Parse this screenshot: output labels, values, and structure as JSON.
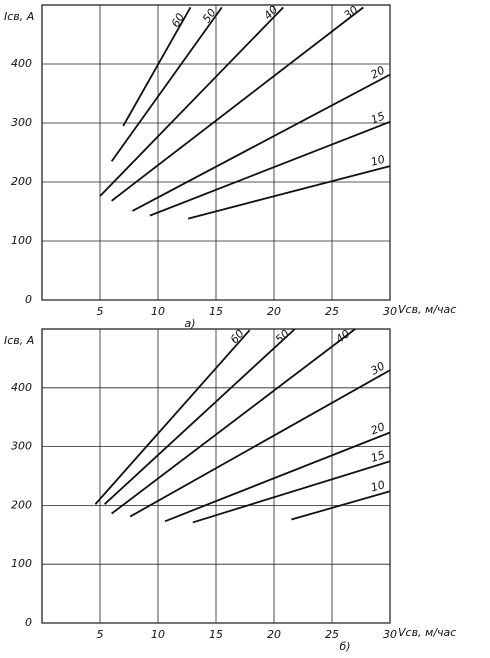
{
  "chart_data": [
    {
      "type": "line",
      "ylabel": "Iсв, А",
      "xlabel": "Vсв, м/час",
      "caption": "а)",
      "xlim": [
        0,
        30
      ],
      "ylim": [
        0,
        500
      ],
      "xticks": [
        5,
        10,
        15,
        20,
        25,
        30
      ],
      "yticks": [
        0,
        100,
        200,
        300,
        400
      ],
      "grid": true,
      "color": "#111111",
      "series": [
        {
          "name": "60",
          "x": [
            7,
            12.8
          ],
          "values": [
            295,
            496
          ]
        },
        {
          "name": "50",
          "x": [
            6,
            15.5
          ],
          "values": [
            235,
            496
          ]
        },
        {
          "name": "40",
          "x": [
            5,
            20.8
          ],
          "values": [
            176,
            496
          ]
        },
        {
          "name": "30",
          "x": [
            6,
            27.7
          ],
          "values": [
            168,
            496
          ]
        },
        {
          "name": "20",
          "x": [
            7.8,
            30
          ],
          "values": [
            151,
            382
          ]
        },
        {
          "name": "15",
          "x": [
            9.3,
            30
          ],
          "values": [
            143,
            302
          ]
        },
        {
          "name": "10",
          "x": [
            12.6,
            30
          ],
          "values": [
            138,
            227
          ]
        }
      ]
    },
    {
      "type": "line",
      "ylabel": "Iсв, А",
      "xlabel": "Vсв, м/час",
      "caption": "б)",
      "xlim": [
        0,
        30
      ],
      "ylim": [
        0,
        500
      ],
      "xticks": [
        5,
        10,
        15,
        20,
        25,
        30
      ],
      "yticks": [
        0,
        100,
        200,
        300,
        400
      ],
      "grid": true,
      "color": "#111111",
      "series": [
        {
          "name": "60",
          "x": [
            4.6,
            17.9
          ],
          "values": [
            202,
            498
          ]
        },
        {
          "name": "50",
          "x": [
            5.4,
            21.8
          ],
          "values": [
            202,
            500
          ]
        },
        {
          "name": "40",
          "x": [
            6,
            27
          ],
          "values": [
            186,
            500
          ]
        },
        {
          "name": "30",
          "x": [
            7.6,
            30
          ],
          "values": [
            181,
            430
          ]
        },
        {
          "name": "20",
          "x": [
            10.6,
            30
          ],
          "values": [
            173,
            324
          ]
        },
        {
          "name": "15",
          "x": [
            13,
            30
          ],
          "values": [
            171,
            275
          ]
        },
        {
          "name": "10",
          "x": [
            21.5,
            30
          ],
          "values": [
            176,
            224
          ]
        }
      ]
    }
  ]
}
